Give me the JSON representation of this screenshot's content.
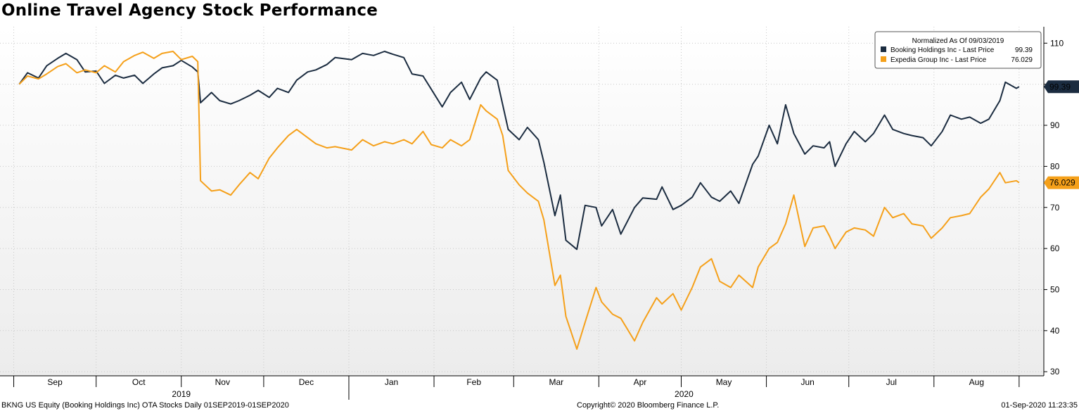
{
  "chart_data": {
    "type": "line",
    "title": "Online Travel Agency Stock Performance",
    "legend": {
      "title": "Normalized As Of 09/03/2019",
      "placement": "top-right",
      "entries": [
        {
          "label": "Booking Holdings Inc - Last Price",
          "value": "99.39"
        },
        {
          "label": "Expedia Group Inc - Last Price",
          "value": "76.029"
        }
      ]
    },
    "ylim": [
      29,
      114
    ],
    "yticks": [
      "30",
      "40",
      "50",
      "60",
      "70",
      "80",
      "90",
      "100",
      "110"
    ],
    "ytick_values": [
      30,
      40,
      50,
      60,
      70,
      80,
      90,
      100,
      110
    ],
    "months": [
      "Sep",
      "Oct",
      "Nov",
      "Dec",
      "Jan",
      "Feb",
      "Mar",
      "Apr",
      "May",
      "Jun",
      "Jul",
      "Aug"
    ],
    "years": [
      "2019",
      "2020"
    ],
    "grid": true,
    "series": [
      {
        "name": "Booking Holdings Inc - Last Price",
        "color": "#1b2c40",
        "last_label": "99.39",
        "points": [
          [
            "2019-09-03",
            100.0
          ],
          [
            "2019-09-06",
            102.8
          ],
          [
            "2019-09-10",
            101.5
          ],
          [
            "2019-09-13",
            104.5
          ],
          [
            "2019-09-17",
            106.3
          ],
          [
            "2019-09-20",
            107.5
          ],
          [
            "2019-09-24",
            106.0
          ],
          [
            "2019-09-27",
            103.0
          ],
          [
            "2019-10-01",
            103.2
          ],
          [
            "2019-10-04",
            100.2
          ],
          [
            "2019-10-08",
            102.2
          ],
          [
            "2019-10-11",
            101.5
          ],
          [
            "2019-10-15",
            102.2
          ],
          [
            "2019-10-18",
            100.2
          ],
          [
            "2019-10-22",
            102.5
          ],
          [
            "2019-10-25",
            104.0
          ],
          [
            "2019-10-29",
            104.5
          ],
          [
            "2019-11-01",
            105.8
          ],
          [
            "2019-11-05",
            104.2
          ],
          [
            "2019-11-07",
            103.0
          ],
          [
            "2019-11-08",
            95.5
          ],
          [
            "2019-11-12",
            98.0
          ],
          [
            "2019-11-15",
            96.0
          ],
          [
            "2019-11-19",
            95.2
          ],
          [
            "2019-11-22",
            96.0
          ],
          [
            "2019-11-26",
            97.3
          ],
          [
            "2019-11-29",
            98.5
          ],
          [
            "2019-12-03",
            96.8
          ],
          [
            "2019-12-06",
            99.0
          ],
          [
            "2019-12-10",
            98.0
          ],
          [
            "2019-12-13",
            101.0
          ],
          [
            "2019-12-17",
            103.0
          ],
          [
            "2019-12-20",
            103.5
          ],
          [
            "2019-12-24",
            104.8
          ],
          [
            "2019-12-27",
            106.5
          ],
          [
            "2020-01-02",
            106.0
          ],
          [
            "2020-01-06",
            107.5
          ],
          [
            "2020-01-10",
            107.0
          ],
          [
            "2020-01-14",
            108.0
          ],
          [
            "2020-01-17",
            107.3
          ],
          [
            "2020-01-21",
            106.5
          ],
          [
            "2020-01-24",
            102.5
          ],
          [
            "2020-01-28",
            102.0
          ],
          [
            "2020-01-31",
            98.8
          ],
          [
            "2020-02-04",
            94.5
          ],
          [
            "2020-02-07",
            98.0
          ],
          [
            "2020-02-11",
            100.5
          ],
          [
            "2020-02-14",
            96.3
          ],
          [
            "2020-02-18",
            101.5
          ],
          [
            "2020-02-20",
            103.0
          ],
          [
            "2020-02-24",
            101.0
          ],
          [
            "2020-02-26",
            95.0
          ],
          [
            "2020-02-28",
            89.0
          ],
          [
            "2020-03-03",
            86.5
          ],
          [
            "2020-03-06",
            89.5
          ],
          [
            "2020-03-10",
            86.5
          ],
          [
            "2020-03-12",
            81.0
          ],
          [
            "2020-03-16",
            68.0
          ],
          [
            "2020-03-18",
            73.0
          ],
          [
            "2020-03-20",
            62.0
          ],
          [
            "2020-03-24",
            59.8
          ],
          [
            "2020-03-27",
            70.5
          ],
          [
            "2020-03-31",
            70.0
          ],
          [
            "2020-04-02",
            65.5
          ],
          [
            "2020-04-06",
            69.5
          ],
          [
            "2020-04-09",
            63.5
          ],
          [
            "2020-04-14",
            70.0
          ],
          [
            "2020-04-17",
            72.3
          ],
          [
            "2020-04-22",
            72.0
          ],
          [
            "2020-04-24",
            75.0
          ],
          [
            "2020-04-28",
            69.5
          ],
          [
            "2020-05-01",
            70.5
          ],
          [
            "2020-05-05",
            72.5
          ],
          [
            "2020-05-08",
            76.0
          ],
          [
            "2020-05-12",
            72.5
          ],
          [
            "2020-05-15",
            71.5
          ],
          [
            "2020-05-19",
            74.0
          ],
          [
            "2020-05-22",
            71.0
          ],
          [
            "2020-05-27",
            80.5
          ],
          [
            "2020-05-29",
            82.5
          ],
          [
            "2020-06-02",
            90.0
          ],
          [
            "2020-06-05",
            85.5
          ],
          [
            "2020-06-08",
            95.0
          ],
          [
            "2020-06-11",
            88.0
          ],
          [
            "2020-06-15",
            83.0
          ],
          [
            "2020-06-18",
            85.0
          ],
          [
            "2020-06-22",
            84.5
          ],
          [
            "2020-06-24",
            86.0
          ],
          [
            "2020-06-26",
            80.0
          ],
          [
            "2020-06-30",
            85.5
          ],
          [
            "2020-07-03",
            88.5
          ],
          [
            "2020-07-07",
            86.0
          ],
          [
            "2020-07-10",
            88.0
          ],
          [
            "2020-07-14",
            92.5
          ],
          [
            "2020-07-17",
            89.0
          ],
          [
            "2020-07-21",
            88.0
          ],
          [
            "2020-07-24",
            87.5
          ],
          [
            "2020-07-28",
            87.0
          ],
          [
            "2020-07-31",
            85.0
          ],
          [
            "2020-08-04",
            88.5
          ],
          [
            "2020-08-07",
            92.5
          ],
          [
            "2020-08-11",
            91.5
          ],
          [
            "2020-08-14",
            92.0
          ],
          [
            "2020-08-18",
            90.5
          ],
          [
            "2020-08-21",
            91.5
          ],
          [
            "2020-08-25",
            96.0
          ],
          [
            "2020-08-27",
            100.5
          ],
          [
            "2020-08-31",
            99.0
          ],
          [
            "2020-09-01",
            99.39
          ]
        ]
      },
      {
        "name": "Expedia Group Inc - Last Price",
        "color": "#f5a01a",
        "last_label": "76.029",
        "points": [
          [
            "2019-09-03",
            100.0
          ],
          [
            "2019-09-06",
            102.0
          ],
          [
            "2019-09-10",
            101.3
          ],
          [
            "2019-09-13",
            102.5
          ],
          [
            "2019-09-17",
            104.3
          ],
          [
            "2019-09-20",
            105.0
          ],
          [
            "2019-09-24",
            102.8
          ],
          [
            "2019-09-27",
            103.5
          ],
          [
            "2019-10-01",
            102.8
          ],
          [
            "2019-10-04",
            104.5
          ],
          [
            "2019-10-08",
            103.0
          ],
          [
            "2019-10-11",
            105.5
          ],
          [
            "2019-10-15",
            107.0
          ],
          [
            "2019-10-18",
            107.8
          ],
          [
            "2019-10-22",
            106.3
          ],
          [
            "2019-10-25",
            107.5
          ],
          [
            "2019-10-29",
            108.0
          ],
          [
            "2019-11-01",
            106.0
          ],
          [
            "2019-11-05",
            106.8
          ],
          [
            "2019-11-07",
            105.5
          ],
          [
            "2019-11-08",
            76.5
          ],
          [
            "2019-11-12",
            74.0
          ],
          [
            "2019-11-15",
            74.3
          ],
          [
            "2019-11-19",
            73.0
          ],
          [
            "2019-11-22",
            75.5
          ],
          [
            "2019-11-26",
            78.5
          ],
          [
            "2019-11-29",
            77.0
          ],
          [
            "2019-12-03",
            82.0
          ],
          [
            "2019-12-06",
            84.5
          ],
          [
            "2019-12-10",
            87.5
          ],
          [
            "2019-12-13",
            89.0
          ],
          [
            "2019-12-17",
            87.0
          ],
          [
            "2019-12-20",
            85.5
          ],
          [
            "2019-12-24",
            84.5
          ],
          [
            "2019-12-27",
            84.8
          ],
          [
            "2020-01-02",
            84.0
          ],
          [
            "2020-01-06",
            86.5
          ],
          [
            "2020-01-10",
            85.0
          ],
          [
            "2020-01-14",
            86.0
          ],
          [
            "2020-01-17",
            85.5
          ],
          [
            "2020-01-21",
            86.5
          ],
          [
            "2020-01-24",
            85.5
          ],
          [
            "2020-01-28",
            88.5
          ],
          [
            "2020-01-31",
            85.3
          ],
          [
            "2020-02-04",
            84.5
          ],
          [
            "2020-02-07",
            86.5
          ],
          [
            "2020-02-11",
            85.0
          ],
          [
            "2020-02-14",
            86.5
          ],
          [
            "2020-02-18",
            95.0
          ],
          [
            "2020-02-20",
            93.5
          ],
          [
            "2020-02-24",
            91.5
          ],
          [
            "2020-02-26",
            87.5
          ],
          [
            "2020-02-28",
            79.0
          ],
          [
            "2020-03-03",
            75.5
          ],
          [
            "2020-03-06",
            73.5
          ],
          [
            "2020-03-10",
            71.5
          ],
          [
            "2020-03-12",
            67.0
          ],
          [
            "2020-03-16",
            51.0
          ],
          [
            "2020-03-18",
            53.5
          ],
          [
            "2020-03-20",
            43.5
          ],
          [
            "2020-03-24",
            35.5
          ],
          [
            "2020-03-27",
            42.0
          ],
          [
            "2020-03-31",
            50.5
          ],
          [
            "2020-04-02",
            47.0
          ],
          [
            "2020-04-06",
            44.0
          ],
          [
            "2020-04-09",
            43.0
          ],
          [
            "2020-04-14",
            37.5
          ],
          [
            "2020-04-17",
            42.0
          ],
          [
            "2020-04-22",
            48.0
          ],
          [
            "2020-04-24",
            46.5
          ],
          [
            "2020-04-28",
            49.0
          ],
          [
            "2020-05-01",
            45.0
          ],
          [
            "2020-05-05",
            50.5
          ],
          [
            "2020-05-08",
            55.5
          ],
          [
            "2020-05-12",
            57.5
          ],
          [
            "2020-05-15",
            52.0
          ],
          [
            "2020-05-19",
            50.5
          ],
          [
            "2020-05-22",
            53.5
          ],
          [
            "2020-05-27",
            50.5
          ],
          [
            "2020-05-29",
            55.5
          ],
          [
            "2020-06-02",
            60.0
          ],
          [
            "2020-06-05",
            61.5
          ],
          [
            "2020-06-08",
            66.0
          ],
          [
            "2020-06-11",
            73.0
          ],
          [
            "2020-06-15",
            60.5
          ],
          [
            "2020-06-18",
            65.0
          ],
          [
            "2020-06-22",
            65.5
          ],
          [
            "2020-06-24",
            63.0
          ],
          [
            "2020-06-26",
            60.0
          ],
          [
            "2020-06-30",
            64.0
          ],
          [
            "2020-07-03",
            65.0
          ],
          [
            "2020-07-07",
            64.5
          ],
          [
            "2020-07-10",
            63.0
          ],
          [
            "2020-07-14",
            70.0
          ],
          [
            "2020-07-17",
            67.5
          ],
          [
            "2020-07-21",
            68.5
          ],
          [
            "2020-07-24",
            66.0
          ],
          [
            "2020-07-28",
            65.5
          ],
          [
            "2020-07-31",
            62.5
          ],
          [
            "2020-08-04",
            65.0
          ],
          [
            "2020-08-07",
            67.5
          ],
          [
            "2020-08-11",
            68.0
          ],
          [
            "2020-08-14",
            68.5
          ],
          [
            "2020-08-18",
            72.5
          ],
          [
            "2020-08-21",
            74.5
          ],
          [
            "2020-08-25",
            78.5
          ],
          [
            "2020-08-27",
            76.0
          ],
          [
            "2020-08-31",
            76.5
          ],
          [
            "2020-09-01",
            76.029
          ]
        ]
      }
    ]
  },
  "footer": {
    "left": "BKNG US Equity (Booking Holdings Inc) OTA Stocks  Daily 01SEP2019-01SEP2020",
    "center": "Copyright© 2020 Bloomberg Finance L.P.",
    "right": "01-Sep-2020 11:23:35"
  }
}
